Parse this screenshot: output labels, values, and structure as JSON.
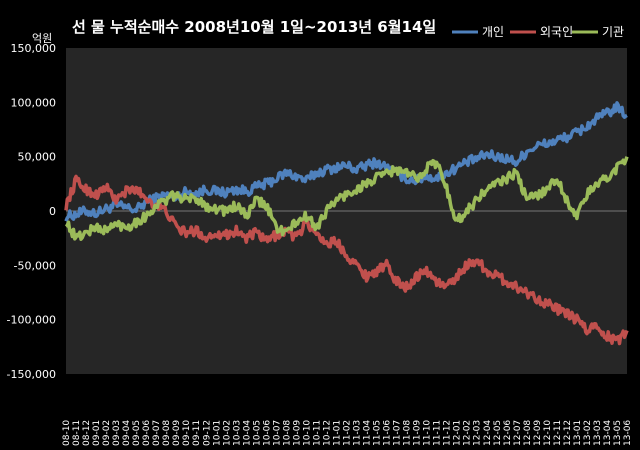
{
  "chart_data": {
    "type": "line",
    "title": "선 물 누적순매수 2008년10월 1일~2013년 6월14일",
    "ylabel": "억원",
    "xlabel": "",
    "ylim": [
      -150000,
      150000
    ],
    "yticks": [
      150000,
      100000,
      50000,
      0,
      -50000,
      -100000,
      -150000
    ],
    "ytick_labels": [
      "150,000",
      "100,000",
      "50,000",
      "0",
      "-50,000",
      "-100,000",
      "-150,000"
    ],
    "grid": false,
    "legend_position": "top-right",
    "x_labels": [
      "08-10",
      "08-11",
      "08-12",
      "09-01",
      "09-02",
      "09-03",
      "09-04",
      "09-05",
      "09-06",
      "09-07",
      "09-08",
      "09-09",
      "09-10",
      "09-11",
      "09-12",
      "10-01",
      "10-02",
      "10-03",
      "10-04",
      "10-05",
      "10-06",
      "10-07",
      "10-08",
      "10-09",
      "10-10",
      "10-11",
      "10-12",
      "11-01",
      "11-02",
      "11-03",
      "11-04",
      "11-05",
      "11-06",
      "11-07",
      "11-08",
      "11-09",
      "11-10",
      "11-11",
      "11-12",
      "12-01",
      "12-02",
      "12-03",
      "12-04",
      "12-05",
      "12-06",
      "12-07",
      "12-08",
      "12-09",
      "12-10",
      "12-11",
      "12-12",
      "13-01",
      "13-02",
      "13-03",
      "13-04",
      "13-05",
      "13-06"
    ],
    "series": [
      {
        "name": "개인",
        "color": "#4F81BD",
        "values": [
          -5000,
          -3000,
          0,
          -2000,
          2000,
          5000,
          3000,
          1000,
          8000,
          12000,
          15000,
          13000,
          18000,
          16000,
          20000,
          18000,
          17000,
          20000,
          18000,
          22000,
          25000,
          30000,
          35000,
          32000,
          28000,
          35000,
          38000,
          40000,
          42000,
          38000,
          42000,
          45000,
          40000,
          35000,
          30000,
          28000,
          32000,
          30000,
          35000,
          40000,
          45000,
          48000,
          52000,
          50000,
          48000,
          45000,
          55000,
          60000,
          62000,
          65000,
          68000,
          72000,
          78000,
          85000,
          90000,
          95000,
          88000
        ]
      },
      {
        "name": "외국인",
        "color": "#C0504D",
        "values": [
          5000,
          28000,
          20000,
          15000,
          22000,
          10000,
          18000,
          20000,
          12000,
          5000,
          0,
          -15000,
          -20000,
          -18000,
          -25000,
          -20000,
          -22000,
          -18000,
          -25000,
          -20000,
          -28000,
          -22000,
          -18000,
          -25000,
          -10000,
          -20000,
          -30000,
          -28000,
          -40000,
          -50000,
          -60000,
          -55000,
          -50000,
          -65000,
          -70000,
          -60000,
          -55000,
          -65000,
          -70000,
          -60000,
          -50000,
          -45000,
          -55000,
          -60000,
          -65000,
          -70000,
          -75000,
          -80000,
          -85000,
          -90000,
          -95000,
          -100000,
          -110000,
          -105000,
          -115000,
          -120000,
          -110000
        ]
      },
      {
        "name": "기관",
        "color": "#9BBB59",
        "values": [
          -10000,
          -25000,
          -20000,
          -15000,
          -18000,
          -12000,
          -15000,
          -10000,
          -5000,
          5000,
          10000,
          15000,
          10000,
          12000,
          5000,
          2000,
          0,
          5000,
          -5000,
          10000,
          5000,
          -15000,
          -20000,
          -10000,
          -5000,
          -15000,
          0,
          10000,
          15000,
          20000,
          25000,
          30000,
          35000,
          38000,
          35000,
          30000,
          40000,
          45000,
          20000,
          -10000,
          0,
          10000,
          20000,
          25000,
          30000,
          35000,
          10000,
          15000,
          20000,
          30000,
          10000,
          -5000,
          15000,
          25000,
          30000,
          40000,
          50000
        ]
      }
    ]
  }
}
